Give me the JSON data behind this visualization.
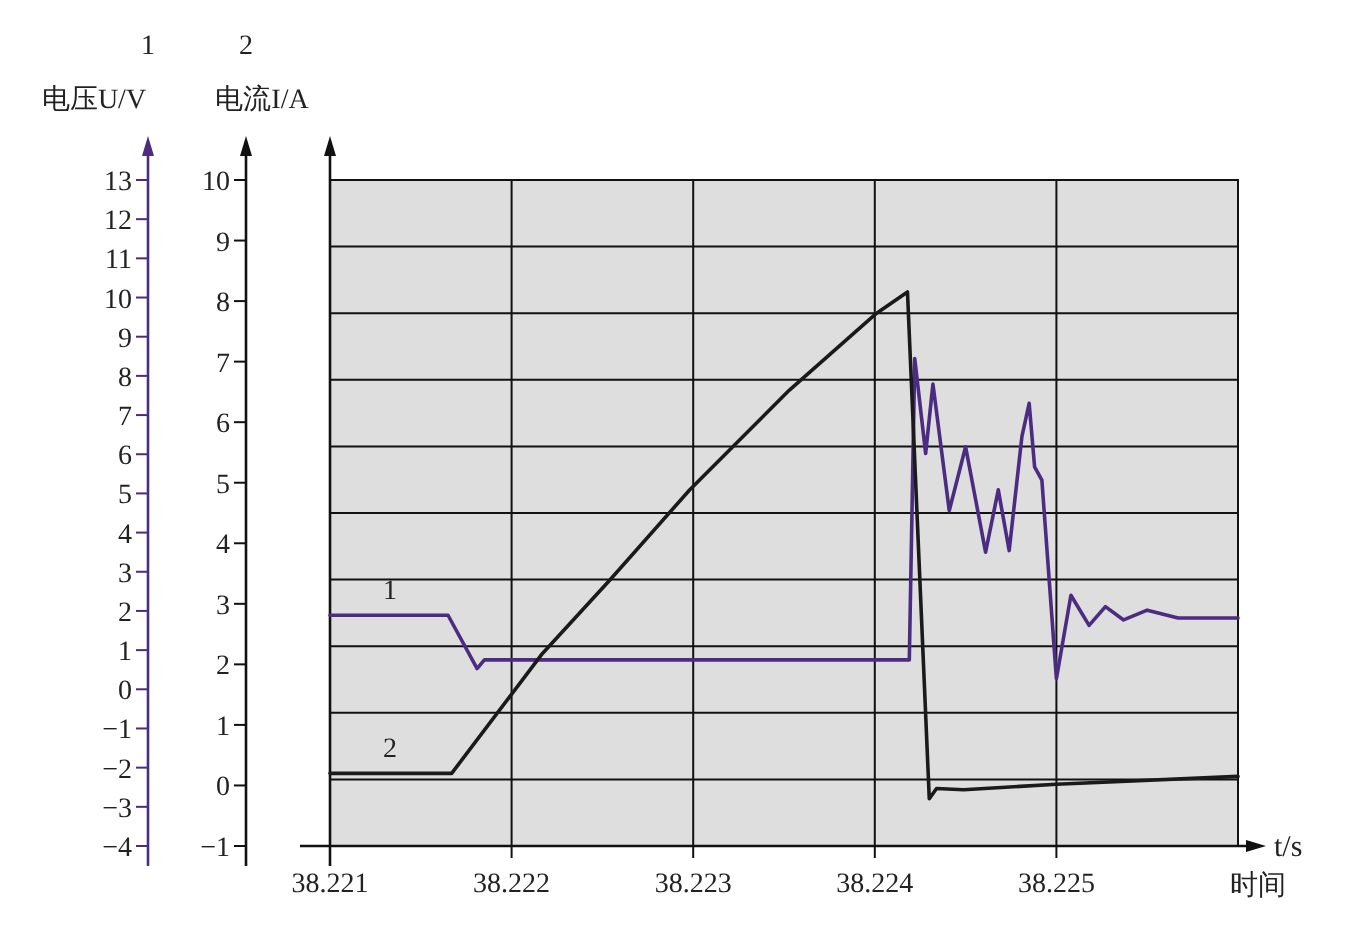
{
  "chart_data": {
    "type": "line",
    "ylabel": "1\n电压U/V",
    "y2label": "2\n电流I/A",
    "xlabel": "t/s",
    "annotations": [
      "时间"
    ],
    "xlim": [
      38.221,
      38.226
    ],
    "xticks": [
      38.221,
      38.222,
      38.223,
      38.224,
      38.225
    ],
    "ylim": [
      -4,
      13
    ],
    "yticks": [
      -4,
      -3,
      -2,
      -1,
      0,
      1,
      2,
      3,
      4,
      5,
      6,
      7,
      8,
      9,
      10,
      11,
      12,
      13
    ],
    "y2lim": [
      -1,
      10
    ],
    "y2ticks": [
      -1,
      0,
      1,
      2,
      3,
      4,
      5,
      6,
      7,
      8,
      9,
      10
    ],
    "grid": true,
    "line_style": "solid",
    "series": [
      {
        "name": "1",
        "color": "#4b2c80",
        "axis": "y",
        "x": [
          38.221,
          38.22165,
          38.22181,
          38.22185,
          38.22419,
          38.22422,
          38.22428,
          38.22432,
          38.22441,
          38.2245,
          38.22461,
          38.22468,
          38.22474,
          38.22481,
          38.22485,
          38.22488,
          38.22492,
          38.225,
          38.22508,
          38.22518,
          38.22527,
          38.22537,
          38.2255,
          38.22567,
          38.226
        ],
        "values": [
          1.89,
          1.89,
          0.53,
          0.75,
          0.75,
          8.44,
          6.02,
          7.79,
          4.56,
          6.19,
          3.5,
          5.09,
          3.54,
          6.45,
          7.3,
          5.68,
          5.34,
          0.27,
          2.4,
          1.63,
          2.11,
          1.77,
          2.02,
          1.82,
          1.82
        ]
      },
      {
        "name": "2",
        "color": "#1a1a1a",
        "axis": "y2",
        "x": [
          38.221,
          38.22167,
          38.22217,
          38.22254,
          38.22298,
          38.22353,
          38.22401,
          38.22418,
          38.2243,
          38.22434,
          38.22449,
          38.225,
          38.226
        ],
        "values": [
          0.2,
          0.2,
          2.18,
          3.39,
          4.88,
          6.53,
          7.8,
          8.15,
          -0.22,
          -0.05,
          -0.07,
          0.02,
          0.15
        ]
      }
    ]
  }
}
